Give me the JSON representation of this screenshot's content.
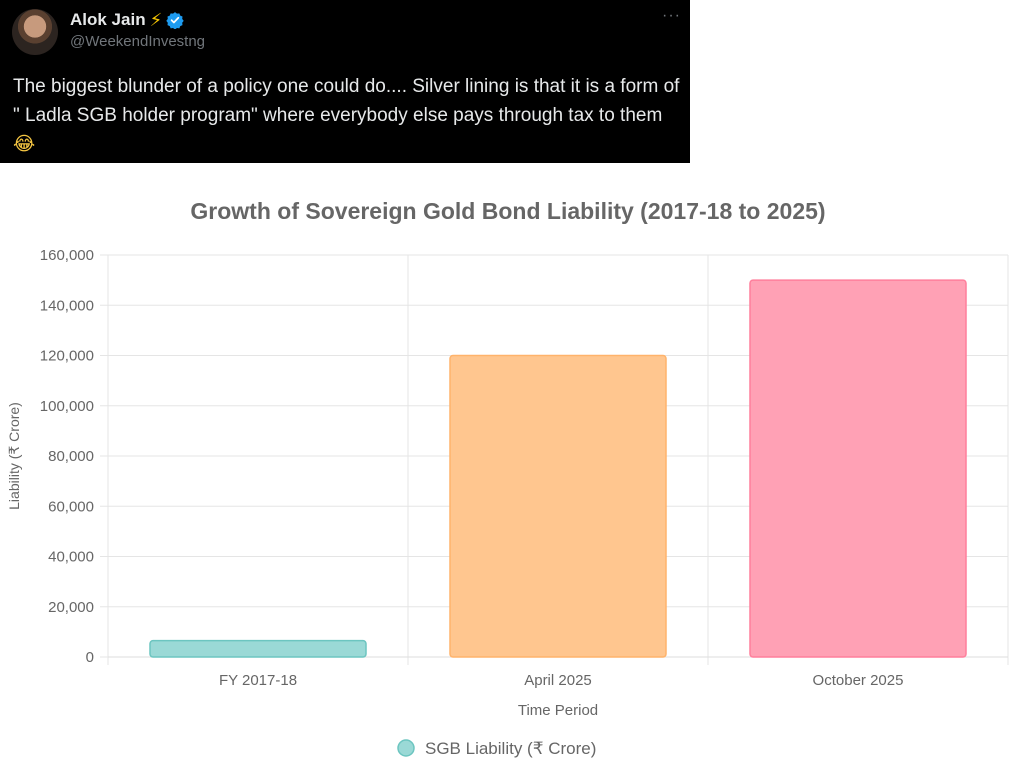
{
  "tweet": {
    "author_name": "Alok Jain",
    "author_emoji": "⚡",
    "handle": "@WeekendInvestng",
    "more_label": "···",
    "text": "The biggest blunder of a policy one could do.... Silver lining is that it is a form of \" Ladla SGB holder program\" where everybody else pays through tax to them",
    "text_emoji": "😂",
    "colors": {
      "background": "#000000",
      "text": "#e7e9ea",
      "muted": "#71767b",
      "verified": "#1d9bf0"
    },
    "icons": [
      "avatar",
      "lightning-icon",
      "verified-badge-icon",
      "more-options-icon"
    ]
  },
  "chart_data": {
    "type": "bar",
    "title": "Growth of Sovereign Gold Bond Liability (2017-18 to 2025)",
    "xlabel": "Time Period",
    "ylabel": "Liability (₹ Crore)",
    "categories": [
      "FY 2017-18",
      "April 2025",
      "October 2025"
    ],
    "series": [
      {
        "name": "SGB Liability (₹ Crore)",
        "values": [
          6500,
          120000,
          150000
        ]
      }
    ],
    "ylim": [
      0,
      160000
    ],
    "yticks": [
      0,
      20000,
      40000,
      60000,
      80000,
      100000,
      120000,
      140000,
      160000
    ],
    "ytick_labels": [
      "0",
      "20,000",
      "40,000",
      "60,000",
      "80,000",
      "100,000",
      "120,000",
      "140,000",
      "160,000"
    ],
    "bar_colors": [
      "#9ad9d6",
      "#ffc68f",
      "#ffa1b5"
    ],
    "bar_border_colors": [
      "#6cc5c0",
      "#ffb36b",
      "#ff7f9c"
    ],
    "legend_color": "#9ad9d6",
    "legend_position": "bottom",
    "grid": true
  }
}
